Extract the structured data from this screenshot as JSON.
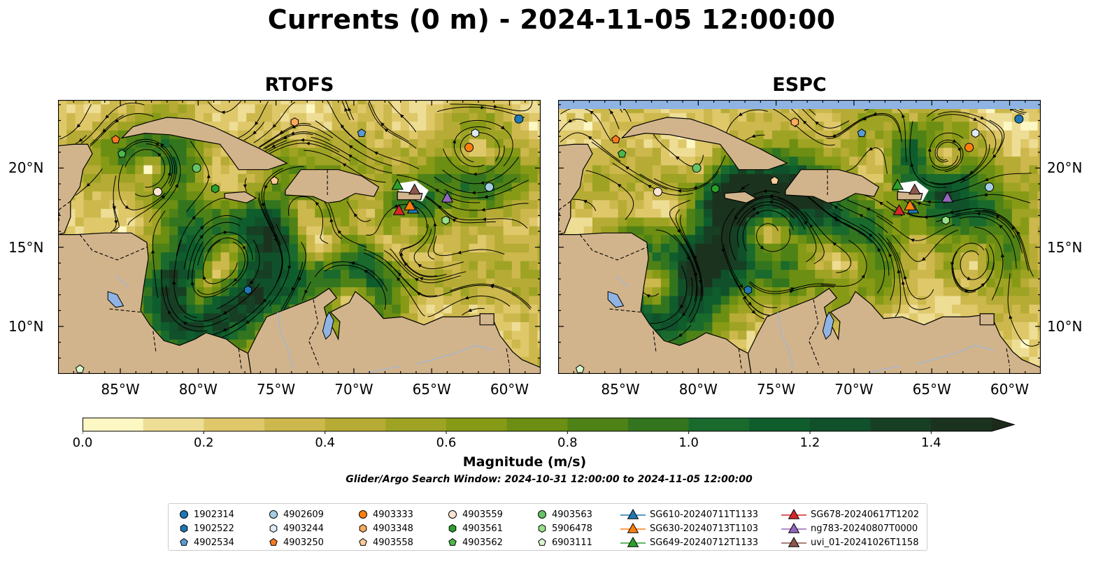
{
  "title": "Currents (0 m) - 2024-11-05 12:00:00",
  "panels": [
    {
      "title": "RTOFS"
    },
    {
      "title": "ESPC"
    }
  ],
  "map": {
    "lon_range": [
      -89,
      -58
    ],
    "lat_range": [
      7,
      24.3
    ],
    "lat_ticks": [
      {
        "value": 20,
        "label": "20°N"
      },
      {
        "value": 15,
        "label": "15°N"
      },
      {
        "value": 10,
        "label": "10°N"
      }
    ],
    "lon_ticks": [
      {
        "value": -85,
        "label": "85°W"
      },
      {
        "value": -80,
        "label": "80°W"
      },
      {
        "value": -75,
        "label": "75°W"
      },
      {
        "value": -70,
        "label": "70°W"
      },
      {
        "value": -65,
        "label": "65°W"
      },
      {
        "value": -60,
        "label": "60°W"
      }
    ],
    "colors": {
      "land": "#d2b48c",
      "lake": "#8fb4e3",
      "field_low": "#f6efb6",
      "field_high": "#1c301c"
    }
  },
  "colorbar": {
    "label": "Magnitude (m/s)",
    "range": [
      0.0,
      1.5
    ],
    "extend": "max",
    "colors": [
      "#fdf7c3",
      "#eedd95",
      "#dfc86a",
      "#ccb84c",
      "#b6ab35",
      "#9ea324",
      "#869a16",
      "#6c8e12",
      "#4f8216",
      "#33751f",
      "#196a2c",
      "#0f5d2c",
      "#10502a",
      "#173f24",
      "#1b331e",
      "#1c2a1b"
    ],
    "ticks": [
      {
        "value": 0.0,
        "label": "0.0"
      },
      {
        "value": 0.2,
        "label": "0.2"
      },
      {
        "value": 0.4,
        "label": "0.4"
      },
      {
        "value": 0.6,
        "label": "0.6"
      },
      {
        "value": 0.8,
        "label": "0.8"
      },
      {
        "value": 1.0,
        "label": "1.0"
      },
      {
        "value": 1.2,
        "label": "1.2"
      },
      {
        "value": 1.4,
        "label": "1.4"
      }
    ]
  },
  "search_window": "Glider/Argo Search Window: 2024-10-31 12:00:00 to 2024-11-05 12:00:00",
  "observations": [
    {
      "id": "1902314",
      "marker": "circle",
      "color": "#1f77b4",
      "lon": -59.4,
      "lat": 23.1
    },
    {
      "id": "1902522",
      "marker": "hexagon",
      "color": "#1f77b4",
      "lon": -76.8,
      "lat": 12.3
    },
    {
      "id": "4902534",
      "marker": "pentagon",
      "color": "#5b9bd5",
      "lon": -69.5,
      "lat": 22.2
    },
    {
      "id": "4902609",
      "marker": "circle",
      "color": "#a6cee3",
      "lon": -61.3,
      "lat": 18.8
    },
    {
      "id": "4903244",
      "marker": "hexagon",
      "color": "#deebf7",
      "lon": -62.2,
      "lat": 22.2
    },
    {
      "id": "4903250",
      "marker": "pentagon",
      "color": "#f47920",
      "lon": -85.3,
      "lat": 21.8
    },
    {
      "id": "4903333",
      "marker": "circle",
      "color": "#ff7f0e",
      "lon": -62.6,
      "lat": 21.3
    },
    {
      "id": "4903348",
      "marker": "hexagon",
      "color": "#ffab5e",
      "lon": -73.8,
      "lat": 22.9
    },
    {
      "id": "4903558",
      "marker": "pentagon",
      "color": "#ffcc99",
      "lon": -75.1,
      "lat": 19.2
    },
    {
      "id": "4903559",
      "marker": "circle",
      "color": "#fde4d2",
      "lon": -82.6,
      "lat": 18.5
    },
    {
      "id": "4903561",
      "marker": "hexagon",
      "color": "#2ca02c",
      "lon": -78.9,
      "lat": 18.7
    },
    {
      "id": "4903562",
      "marker": "pentagon",
      "color": "#4cb84c",
      "lon": -84.9,
      "lat": 20.9
    },
    {
      "id": "4903563",
      "marker": "circle",
      "color": "#66c266",
      "lon": -80.1,
      "lat": 20.0
    },
    {
      "id": "5906478",
      "marker": "hexagon",
      "color": "#98df8a",
      "lon": -64.1,
      "lat": 16.7
    },
    {
      "id": "6903111",
      "marker": "pentagon",
      "color": "#d9f5cf",
      "lon": -87.6,
      "lat": 7.3
    },
    {
      "id": "SG610-20240711T1133",
      "marker": "triangle",
      "color": "#1f77b4",
      "lon": -66.2,
      "lat": 17.4
    },
    {
      "id": "SG630-20240713T1103",
      "marker": "triangle",
      "color": "#ff7f0e",
      "lon": -66.4,
      "lat": 17.6
    },
    {
      "id": "SG649-20240712T1133",
      "marker": "triangle",
      "color": "#2ca02c",
      "lon": -67.2,
      "lat": 18.9
    },
    {
      "id": "SG678-20240617T1202",
      "marker": "triangle",
      "color": "#d62728",
      "lon": -67.1,
      "lat": 17.3
    },
    {
      "id": "ng783-20240807T0000",
      "marker": "triangle",
      "color": "#9467bd",
      "lon": -64.0,
      "lat": 18.1
    },
    {
      "id": "uvi_01-20241026T1158",
      "marker": "triangle",
      "color": "#8c564b",
      "lon": -66.1,
      "lat": 18.6
    }
  ]
}
